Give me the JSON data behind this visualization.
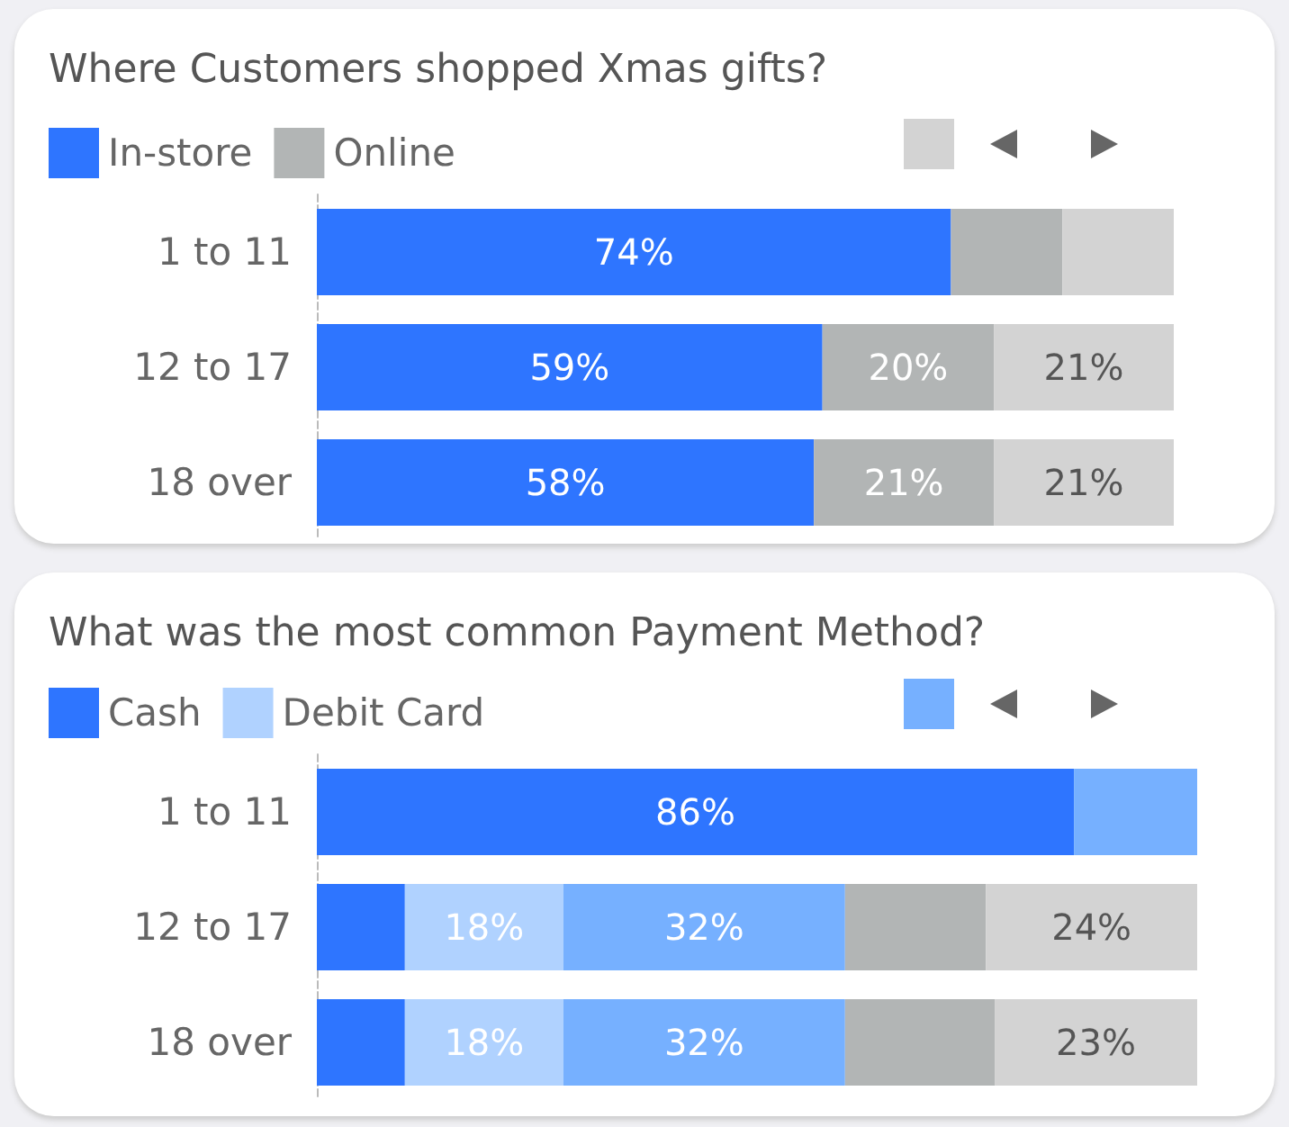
{
  "chart_data": [
    {
      "type": "bar",
      "orientation": "horizontal",
      "stacked": true,
      "title": "Where Customers shopped Xmas gifts?",
      "legend": "top left",
      "categories": [
        "1 to 11",
        "12 to 17",
        "18 over"
      ],
      "series": [
        {
          "name": "In-store",
          "color": "#2e75ff",
          "values": [
            74,
            59,
            58
          ],
          "value_labels": [
            "74%",
            "59%",
            "58%"
          ]
        },
        {
          "name": "Online",
          "color": "#b2b5b5",
          "values": [
            13,
            20,
            21
          ],
          "value_labels": [
            null,
            "20%",
            "21%"
          ]
        },
        {
          "color": "#d3d3d3",
          "values": [
            13,
            21,
            21
          ],
          "value_labels": [
            null,
            "21%",
            "21%"
          ]
        }
      ]
    },
    {
      "type": "bar",
      "orientation": "horizontal",
      "stacked": true,
      "title": "What was the most common Payment Method?",
      "legend": "top left",
      "categories": [
        "1 to 11",
        "12 to 17",
        "18 over"
      ],
      "series": [
        {
          "name": "Cash",
          "color": "#2e75ff",
          "values": [
            86,
            10,
            10
          ],
          "value_labels": [
            "86%",
            null,
            null
          ]
        },
        {
          "name": "Debit Card",
          "color": "#b0d2ff",
          "values": [
            null,
            18,
            18
          ],
          "value_labels": [
            null,
            "18%",
            "18%"
          ]
        },
        {
          "color": "#76b0ff",
          "values": [
            14,
            32,
            32
          ],
          "value_labels": [
            null,
            "32%",
            "32%"
          ]
        },
        {
          "color": "#b2b5b5",
          "values": [
            null,
            16,
            17
          ],
          "value_labels": [
            null,
            null,
            null
          ]
        },
        {
          "color": "#d3d3d3",
          "values": [
            null,
            24,
            23
          ],
          "value_labels": [
            null,
            "24%",
            "23%"
          ]
        }
      ]
    }
  ]
}
